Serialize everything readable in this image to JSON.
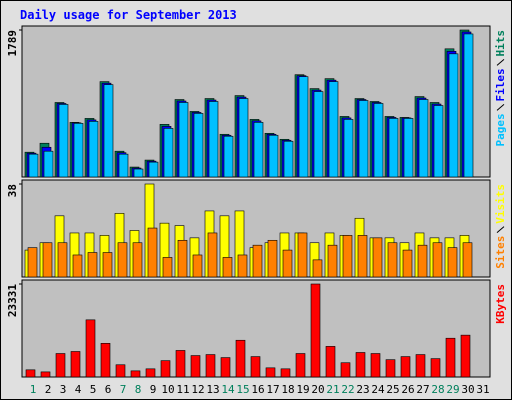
{
  "chart_data": [
    {
      "type": "bar",
      "title": "Daily usage for September 2013",
      "categories": [
        "1",
        "2",
        "3",
        "4",
        "5",
        "6",
        "7",
        "8",
        "9",
        "10",
        "11",
        "12",
        "13",
        "14",
        "15",
        "16",
        "17",
        "18",
        "19",
        "20",
        "21",
        "22",
        "23",
        "24",
        "25",
        "26",
        "27",
        "28",
        "29",
        "30",
        "31"
      ],
      "category_colors": [
        "#00805c",
        "#000000",
        "#000000",
        "#000000",
        "#000000",
        "#000000",
        "#00805c",
        "#00805c",
        "#000000",
        "#000000",
        "#000000",
        "#000000",
        "#000000",
        "#00805c",
        "#00805c",
        "#000000",
        "#000000",
        "#000000",
        "#000000",
        "#000000",
        "#00805c",
        "#00805c",
        "#000000",
        "#000000",
        "#000000",
        "#000000",
        "#000000",
        "#00805c",
        "#00805c",
        "#000000",
        "#000000"
      ],
      "ylim": [
        0,
        1789
      ],
      "yticks": [
        1789
      ],
      "series": [
        {
          "name": "Pages",
          "color": "#00c0ff",
          "values": [
            278,
            314,
            883,
            653,
            677,
            1124,
            278,
            97,
            181,
            592,
            907,
            774,
            919,
            496,
            955,
            665,
            508,
            435,
            1221,
            1040,
            1161,
            701,
            931,
            895,
            713,
            713,
            943,
            870,
            1499,
            1741,
            null
          ]
        },
        {
          "name": "Files",
          "color": "#0000ff",
          "values": [
            290,
            362,
            895,
            659,
            695,
            1142,
            296,
            109,
            193,
            616,
            925,
            786,
            937,
            508,
            973,
            683,
            520,
            447,
            1233,
            1058,
            1179,
            719,
            943,
            907,
            725,
            719,
            961,
            888,
            1530,
            1765,
            null
          ]
        },
        {
          "name": "Hits",
          "color": "#00805c",
          "values": [
            302,
            411,
            907,
            665,
            713,
            1161,
            314,
            121,
            206,
            641,
            943,
            798,
            955,
            520,
            991,
            701,
            532,
            459,
            1245,
            1076,
            1197,
            737,
            955,
            919,
            737,
            725,
            979,
            907,
            1560,
            1789,
            null
          ]
        }
      ]
    },
    {
      "type": "bar",
      "ylim": [
        0,
        38
      ],
      "yticks": [
        38
      ],
      "series": [
        {
          "name": "Sites",
          "color": "#ff8000",
          "values": [
            12,
            14,
            14,
            9,
            10,
            10,
            14,
            14,
            20,
            8,
            15,
            9,
            18,
            8,
            9,
            13,
            15,
            11,
            18,
            7,
            13,
            17,
            17,
            16,
            14,
            11,
            13,
            14,
            12,
            14,
            null
          ]
        },
        {
          "name": "Visits",
          "color": "#ffff00",
          "values": [
            11,
            14,
            25,
            18,
            18,
            17,
            26,
            19,
            38,
            22,
            21,
            16,
            27,
            25,
            27,
            12,
            14,
            18,
            18,
            14,
            18,
            17,
            24,
            16,
            16,
            14,
            18,
            16,
            16,
            17,
            null
          ]
        }
      ]
    },
    {
      "type": "bar",
      "ylim": [
        0,
        23331
      ],
      "yticks": [
        23331
      ],
      "series": [
        {
          "name": "KBytes",
          "color": "#ff0000",
          "values": [
            1800,
            1280,
            5890,
            6400,
            14340,
            8450,
            3070,
            1540,
            2050,
            4100,
            6660,
            5380,
            5630,
            4870,
            9220,
            5120,
            2300,
            2050,
            5890,
            23331,
            7680,
            3580,
            6150,
            5890,
            4350,
            5120,
            5630,
            4610,
            9730,
            10500,
            null
          ]
        }
      ]
    }
  ]
}
